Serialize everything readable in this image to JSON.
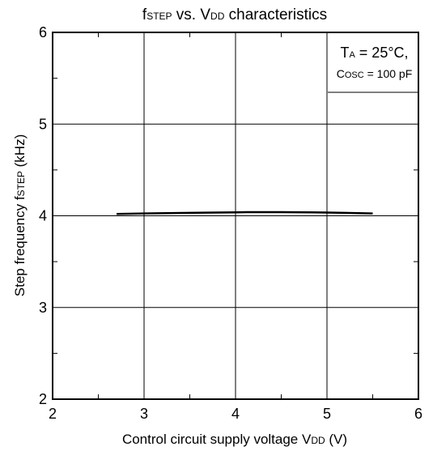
{
  "chart_data": {
    "type": "line",
    "title": {
      "main": "f",
      "sub": "STEP",
      "rest1": " vs. V",
      "sub2": "DD",
      "rest2": " characteristics"
    },
    "xlabel": {
      "main": "Control circuit supply voltage V",
      "sub": "DD",
      "unit": " (V)"
    },
    "ylabel": {
      "main": "Step frequency f",
      "sub": "STEP",
      "unit": " (kHz)"
    },
    "xlim": [
      2,
      6
    ],
    "ylim": [
      2,
      6
    ],
    "xticks": [
      2,
      3,
      4,
      5,
      6
    ],
    "yticks": [
      2,
      3,
      4,
      5,
      6
    ],
    "x_minor_step": 0.5,
    "y_minor_step": 0.5,
    "grid": true,
    "series": [
      {
        "x": [
          2.7,
          3.0,
          3.5,
          4.0,
          4.2,
          4.5,
          5.0,
          5.5
        ],
        "y": [
          4.02,
          4.025,
          4.032,
          4.038,
          4.04,
          4.04,
          4.035,
          4.025
        ]
      }
    ],
    "annotation": {
      "line1_a": "T",
      "line1_sub": "A",
      "line1_b": " = 25°C,",
      "line2_a": "C",
      "line2_sub": "OSC",
      "line2_b": " = 100 pF"
    }
  }
}
